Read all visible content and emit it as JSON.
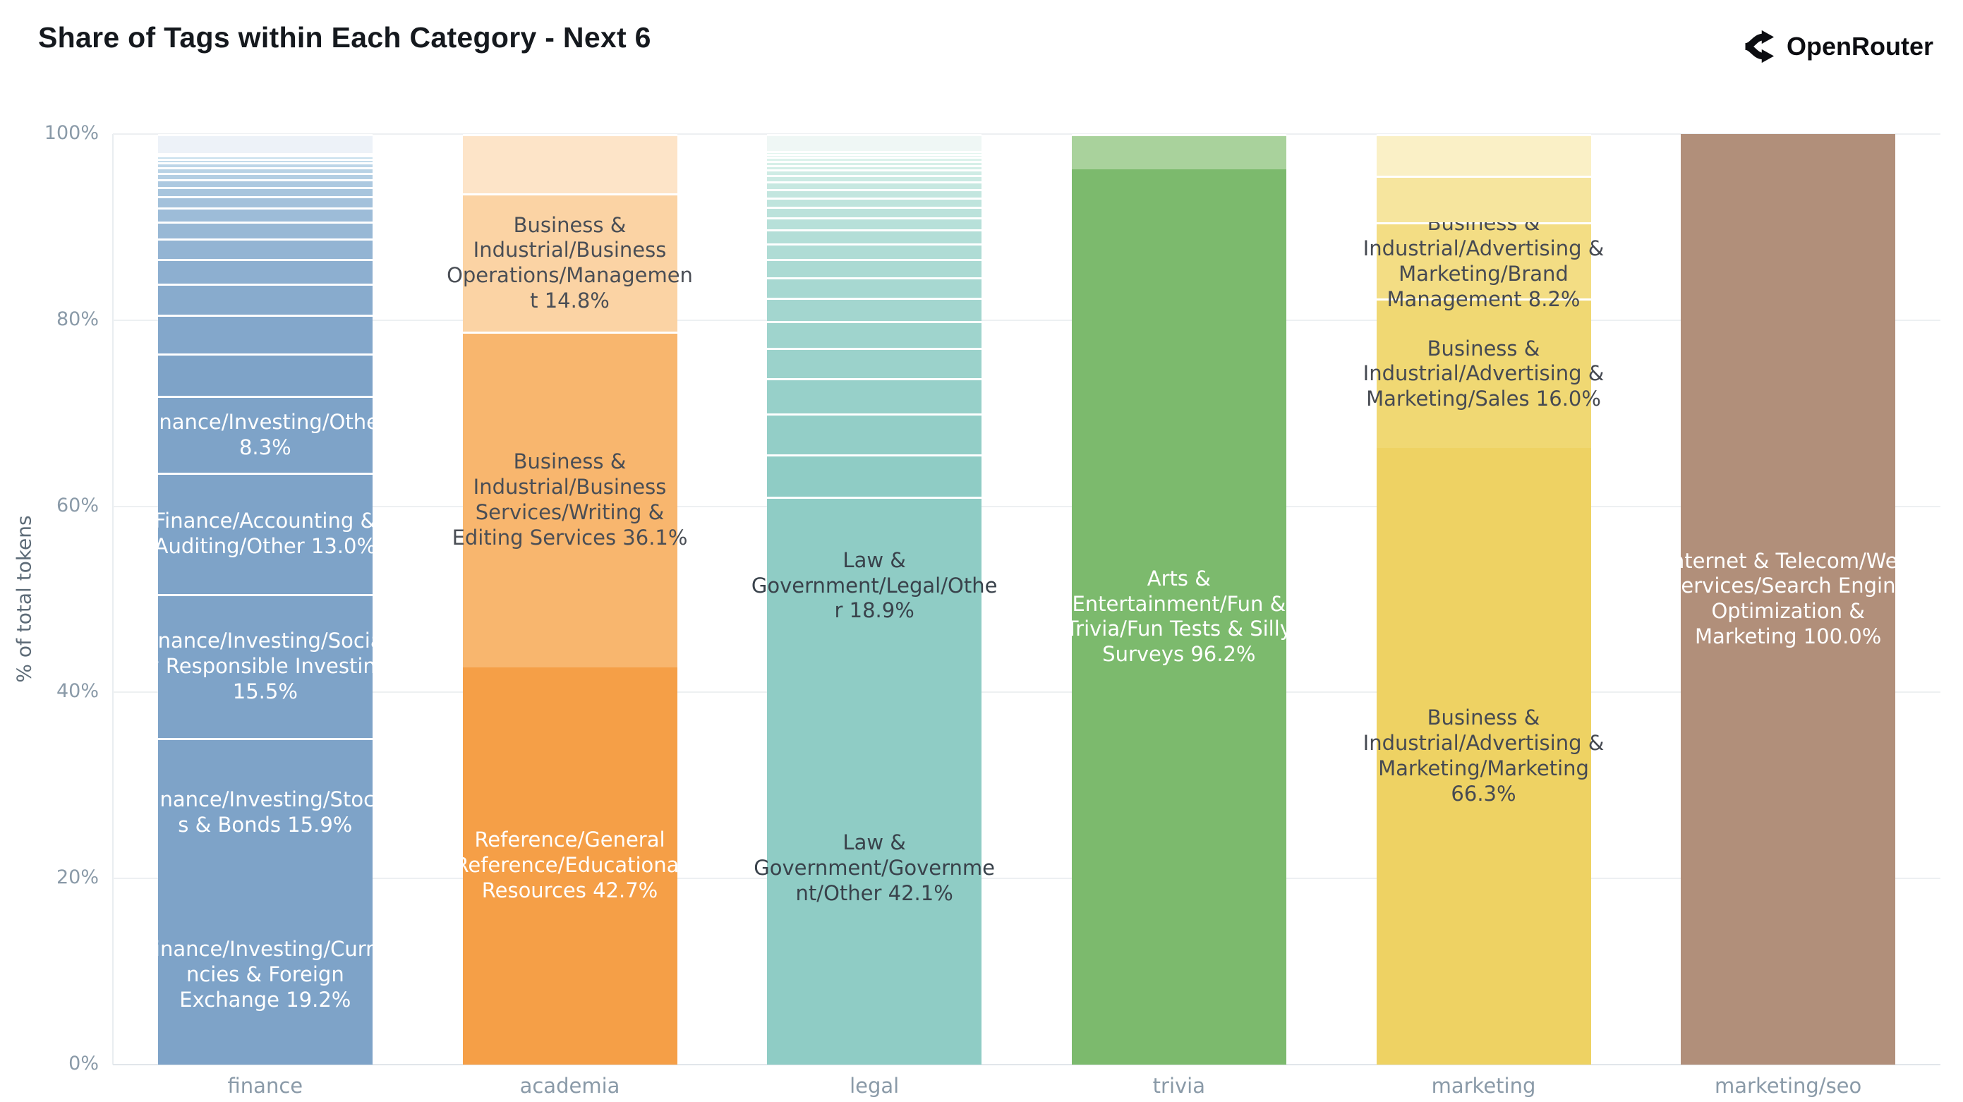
{
  "header": {
    "title": "Share of Tags within Each Category - Next 6",
    "brand": "OpenRouter"
  },
  "chart_data": {
    "type": "bar",
    "subtype": "stacked_percent_column",
    "title": "Share of Tags within Each Category - Next 6",
    "xlabel": "",
    "ylabel": "% of total tokens",
    "ylim": [
      0,
      100
    ],
    "yticks": [
      0,
      20,
      40,
      60,
      80,
      100
    ],
    "ytick_suffix": "%",
    "grid": true,
    "legend": false,
    "categories": [
      "finance",
      "academia",
      "legal",
      "trivia",
      "marketing",
      "marketing/seo"
    ],
    "bars": [
      {
        "category": "finance",
        "segments": [
          {
            "label": "Finance/Investing/Currencies & Foreign Exchange",
            "value": 19.2,
            "color": "#7ea3c8",
            "text_color": "#ffffff"
          },
          {
            "label": "Finance/Investing/Stocks & Bonds",
            "value": 15.9,
            "color": "#7ea3c8",
            "text_color": "#ffffff"
          },
          {
            "label": "Finance/Investing/Socially Responsible Investing",
            "value": 15.5,
            "color": "#7ea3c8",
            "text_color": "#ffffff"
          },
          {
            "label": "Finance/Accounting & Auditing/Other",
            "value": 13.0,
            "color": "#7ea3c8",
            "text_color": "#ffffff"
          },
          {
            "label": "Finance/Investing/Other",
            "value": 8.3,
            "color": "#7ea3c8",
            "text_color": "#ffffff"
          },
          {
            "label": null,
            "value": 4.5,
            "color": "#7ea3c8"
          },
          {
            "label": null,
            "value": 4.2,
            "color": "#83a7cb"
          },
          {
            "label": null,
            "value": 3.3,
            "color": "#88abcd"
          },
          {
            "label": null,
            "value": 2.7,
            "color": "#8dafd0"
          },
          {
            "label": null,
            "value": 2.2,
            "color": "#93b4d3"
          },
          {
            "label": null,
            "value": 1.8,
            "color": "#98b8d5"
          },
          {
            "label": null,
            "value": 1.5,
            "color": "#9dbcd8"
          },
          {
            "label": null,
            "value": 1.2,
            "color": "#a3c1db"
          },
          {
            "label": null,
            "value": 1.0,
            "color": "#a8c5dd"
          },
          {
            "label": null,
            "value": 0.85,
            "color": "#adc9e0"
          },
          {
            "label": null,
            "value": 0.7,
            "color": "#b3cee3"
          },
          {
            "label": null,
            "value": 0.6,
            "color": "#b8d2e5"
          },
          {
            "label": null,
            "value": 0.5,
            "color": "#bdd6e8"
          },
          {
            "label": null,
            "value": 0.4,
            "color": "#c3dbeb"
          },
          {
            "label": null,
            "value": 0.35,
            "color": "#c8dfed"
          },
          {
            "label": null,
            "value": 0.3,
            "color": "#cde3f0"
          },
          {
            "label": null,
            "value": 2.0,
            "color": "#edf2f8"
          }
        ]
      },
      {
        "category": "academia",
        "segments": [
          {
            "label": "Reference/General Reference/Educational Resources",
            "value": 42.7,
            "color": "#f59f47",
            "text_color": "#ffffff"
          },
          {
            "label": "Business & Industrial/Business Services/Writing & Editing Services",
            "value": 36.1,
            "color": "#f8b66e",
            "text_color": "#4a4e55"
          },
          {
            "label": "Business & Industrial/Business Operations/Management",
            "value": 14.8,
            "color": "#fbd3a4",
            "text_color": "#4a4e55"
          },
          {
            "label": null,
            "value": 6.4,
            "color": "#fde4c8"
          }
        ]
      },
      {
        "category": "legal",
        "segments": [
          {
            "label": "Law & Government/Government/Other",
            "value": 42.1,
            "color": "#8fccc5",
            "text_color": "#39424b"
          },
          {
            "label": "Law & Government/Legal/Other",
            "value": 18.9,
            "color": "#8fccc5",
            "text_color": "#39424b"
          },
          {
            "label": null,
            "value": 4.55,
            "color": "#8fccc5"
          },
          {
            "label": null,
            "value": 4.4,
            "color": "#93cec7"
          },
          {
            "label": null,
            "value": 3.8,
            "color": "#97d0c9"
          },
          {
            "label": null,
            "value": 3.3,
            "color": "#9bd2cb"
          },
          {
            "label": null,
            "value": 2.9,
            "color": "#9fd4cd"
          },
          {
            "label": null,
            "value": 2.5,
            "color": "#a3d6cf"
          },
          {
            "label": null,
            "value": 2.2,
            "color": "#a7d8d1"
          },
          {
            "label": null,
            "value": 1.9,
            "color": "#abdad3"
          },
          {
            "label": null,
            "value": 1.7,
            "color": "#afdcd5"
          },
          {
            "label": null,
            "value": 1.5,
            "color": "#b3ded7"
          },
          {
            "label": null,
            "value": 1.3,
            "color": "#b7e0d9"
          },
          {
            "label": null,
            "value": 1.15,
            "color": "#bbe2db"
          },
          {
            "label": null,
            "value": 1.0,
            "color": "#bfe4dd"
          },
          {
            "label": null,
            "value": 0.9,
            "color": "#c3e6df"
          },
          {
            "label": null,
            "value": 0.8,
            "color": "#c7e8e1"
          },
          {
            "label": null,
            "value": 0.7,
            "color": "#cbeae3"
          },
          {
            "label": null,
            "value": 0.6,
            "color": "#cfece5"
          },
          {
            "label": null,
            "value": 0.5,
            "color": "#d3eee7"
          },
          {
            "label": null,
            "value": 0.45,
            "color": "#d7f0e9"
          },
          {
            "label": null,
            "value": 0.4,
            "color": "#dbf2eb"
          },
          {
            "label": null,
            "value": 0.35,
            "color": "#dff4ed"
          },
          {
            "label": null,
            "value": 0.3,
            "color": "#e3f6ef"
          },
          {
            "label": null,
            "value": 1.8,
            "color": "#eff7f5"
          }
        ]
      },
      {
        "category": "trivia",
        "segments": [
          {
            "label": "Arts & Entertainment/Fun & Trivia/Fun Tests & Silly Surveys",
            "value": 96.2,
            "color": "#7cba6d",
            "text_color": "#ffffff"
          },
          {
            "label": null,
            "value": 3.8,
            "color": "#a9d29c"
          }
        ]
      },
      {
        "category": "marketing",
        "segments": [
          {
            "label": "Business & Industrial/Advertising & Marketing/Marketing",
            "value": 66.3,
            "color": "#eed263",
            "text_color": "#464a52"
          },
          {
            "label": "Business & Industrial/Advertising & Marketing/Sales",
            "value": 16.0,
            "color": "#f0d873",
            "text_color": "#464a52"
          },
          {
            "label": "Business & Industrial/Advertising & Marketing/Brand Management",
            "value": 8.2,
            "color": "#f3dd84",
            "text_color": "#464a52"
          },
          {
            "label": null,
            "value": 5.0,
            "color": "#f6e59e"
          },
          {
            "label": null,
            "value": 4.5,
            "color": "#faf0c6"
          }
        ]
      },
      {
        "category": "marketing/seo",
        "segments": [
          {
            "label": "Internet & Telecom/Web Services/Search Engine Optimization & Marketing",
            "value": 100.0,
            "color": "#b18f7a",
            "text_color": "#ffffff"
          }
        ]
      }
    ]
  }
}
